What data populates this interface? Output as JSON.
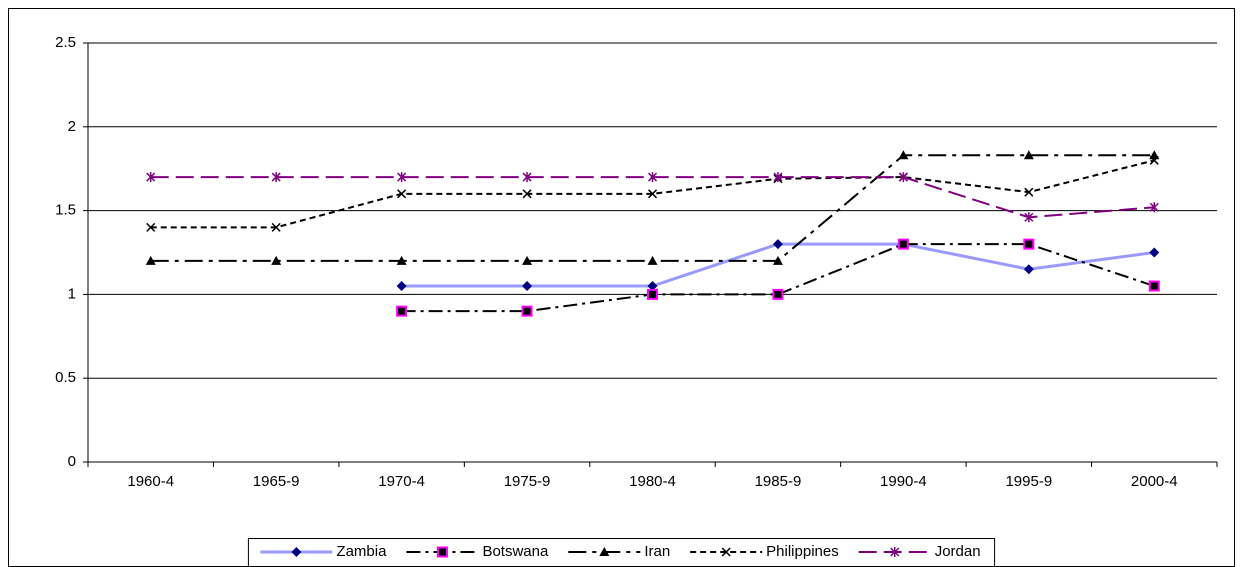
{
  "chart_data": {
    "type": "line",
    "categories": [
      "1960-4",
      "1965-9",
      "1970-4",
      "1975-9",
      "1980-4",
      "1985-9",
      "1990-4",
      "1995-9",
      "2000-4"
    ],
    "series": [
      {
        "name": "Zambia",
        "color": "#000080",
        "line_color": "#9999ff",
        "line_style": "solid",
        "marker": "diamond",
        "values": [
          null,
          null,
          1.05,
          1.05,
          1.05,
          1.3,
          1.3,
          1.15,
          1.25
        ]
      },
      {
        "name": "Botswana",
        "color": "#ff00ff",
        "line_color": "#000000",
        "line_style": "dash-dot",
        "marker": "square",
        "values": [
          null,
          null,
          0.9,
          0.9,
          1.0,
          1.0,
          1.3,
          1.3,
          1.05
        ]
      },
      {
        "name": "Iran",
        "color": "#000000",
        "line_color": "#000000",
        "line_style": "long-dash-dot",
        "marker": "triangle",
        "values": [
          1.2,
          1.2,
          1.2,
          1.2,
          1.2,
          1.2,
          1.83,
          1.83,
          1.83
        ]
      },
      {
        "name": "Philippines",
        "color": "#000000",
        "line_color": "#000000",
        "line_style": "short-dash",
        "marker": "x",
        "values": [
          1.4,
          1.4,
          1.6,
          1.6,
          1.6,
          1.69,
          1.7,
          1.61,
          1.8
        ]
      },
      {
        "name": "Jordan",
        "color": "#800080",
        "line_color": "#800080",
        "line_style": "long-dash",
        "marker": "star",
        "values": [
          1.7,
          1.7,
          1.7,
          1.7,
          1.7,
          1.7,
          1.7,
          1.46,
          1.52
        ]
      }
    ],
    "ylim": [
      0,
      2.5
    ],
    "yticks": [
      0,
      0.5,
      1,
      1.5,
      2,
      2.5
    ],
    "grid": true,
    "legend": "bottom"
  }
}
